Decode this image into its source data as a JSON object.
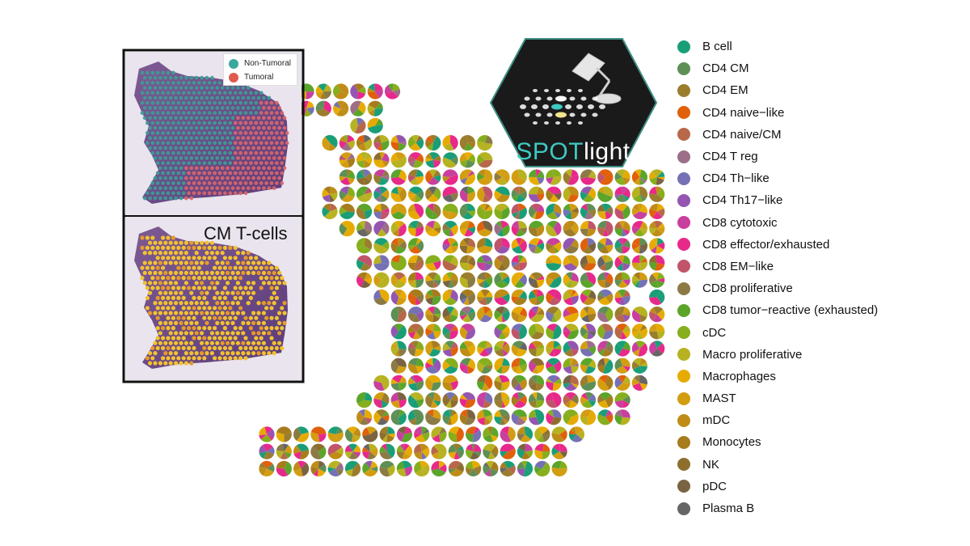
{
  "legend": {
    "items": [
      {
        "label": "B cell",
        "color": "#1a9e77"
      },
      {
        "label": "CD4 CM",
        "color": "#5e8f55"
      },
      {
        "label": "CD4 EM",
        "color": "#9b7d2e"
      },
      {
        "label": "CD4 naive−like",
        "color": "#e0600b"
      },
      {
        "label": "CD4 naive/CM",
        "color": "#b8684a"
      },
      {
        "label": "CD4 T reg",
        "color": "#9c6e88"
      },
      {
        "label": "CD4 Th−like",
        "color": "#7571b5"
      },
      {
        "label": "CD4 Th17−like",
        "color": "#9456b0"
      },
      {
        "label": "CD8 cytotoxic",
        "color": "#c93f9e"
      },
      {
        "label": "CD8 effector/exhausted",
        "color": "#e7298a"
      },
      {
        "label": "CD8 EM−like",
        "color": "#c0556a"
      },
      {
        "label": "CD8 proliferative",
        "color": "#8c7a45"
      },
      {
        "label": "CD8 tumor−reactive (exhausted)",
        "color": "#5aa52a"
      },
      {
        "label": "cDC",
        "color": "#86ae1d"
      },
      {
        "label": "Macro proliferative",
        "color": "#b7b221"
      },
      {
        "label": "Macrophages",
        "color": "#e6ab02"
      },
      {
        "label": "MAST",
        "color": "#d39d12"
      },
      {
        "label": "mDC",
        "color": "#bf8d17"
      },
      {
        "label": "Monocytes",
        "color": "#a77c1d"
      },
      {
        "label": "NK",
        "color": "#8e6e2f"
      },
      {
        "label": "pDC",
        "color": "#7a6342"
      },
      {
        "label": "Plasma B",
        "color": "#666666"
      }
    ]
  },
  "inset_top": {
    "legend": [
      {
        "label": "Non-Tumoral",
        "color": "#3aa89a"
      },
      {
        "label": "Tumoral",
        "color": "#e05a4e"
      }
    ]
  },
  "inset_bottom": {
    "title": "CM T-cells",
    "spot_color": "#f2c230"
  },
  "logo": {
    "text_spot": "SPOT",
    "text_light": "light",
    "accent": "#3ec9c3"
  }
}
